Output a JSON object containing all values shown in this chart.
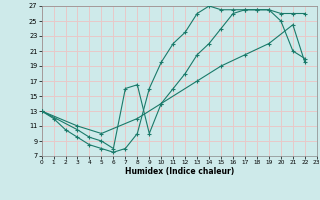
{
  "xlabel": "Humidex (Indice chaleur)",
  "xlim": [
    0,
    23
  ],
  "ylim": [
    7,
    27
  ],
  "xticks": [
    0,
    1,
    2,
    3,
    4,
    5,
    6,
    7,
    8,
    9,
    10,
    11,
    12,
    13,
    14,
    15,
    16,
    17,
    18,
    19,
    20,
    21,
    22,
    23
  ],
  "yticks": [
    7,
    9,
    11,
    13,
    15,
    17,
    19,
    21,
    23,
    25,
    27
  ],
  "background_color": "#ceeaea",
  "grid_color": "#e8c8c8",
  "line_color": "#1a7a6a",
  "line1_x": [
    0,
    1,
    2,
    3,
    4,
    5,
    6,
    7,
    8,
    9,
    10,
    11,
    12,
    13,
    14,
    15,
    16,
    17,
    18,
    19,
    20,
    21,
    22
  ],
  "line1_y": [
    13,
    12,
    10.5,
    9.5,
    8.5,
    8,
    7.5,
    8,
    10,
    16,
    19.5,
    22,
    23.5,
    26,
    27,
    26.5,
    26.5,
    26.5,
    26.5,
    26.5,
    26,
    26,
    26
  ],
  "line2_x": [
    0,
    3,
    4,
    5,
    6,
    7,
    8,
    9,
    10,
    11,
    12,
    13,
    14,
    15,
    16,
    17,
    18,
    19,
    20,
    21,
    22
  ],
  "line2_y": [
    13,
    10.5,
    9.5,
    9,
    8,
    16,
    16.5,
    10,
    14,
    16,
    18,
    20.5,
    22,
    24,
    26,
    26.5,
    26.5,
    26.5,
    25,
    21,
    20
  ],
  "line3_x": [
    0,
    3,
    5,
    8,
    10,
    13,
    15,
    17,
    19,
    21,
    22
  ],
  "line3_y": [
    13,
    11,
    10,
    12,
    14,
    17,
    19,
    20.5,
    22,
    24.5,
    19.5
  ]
}
